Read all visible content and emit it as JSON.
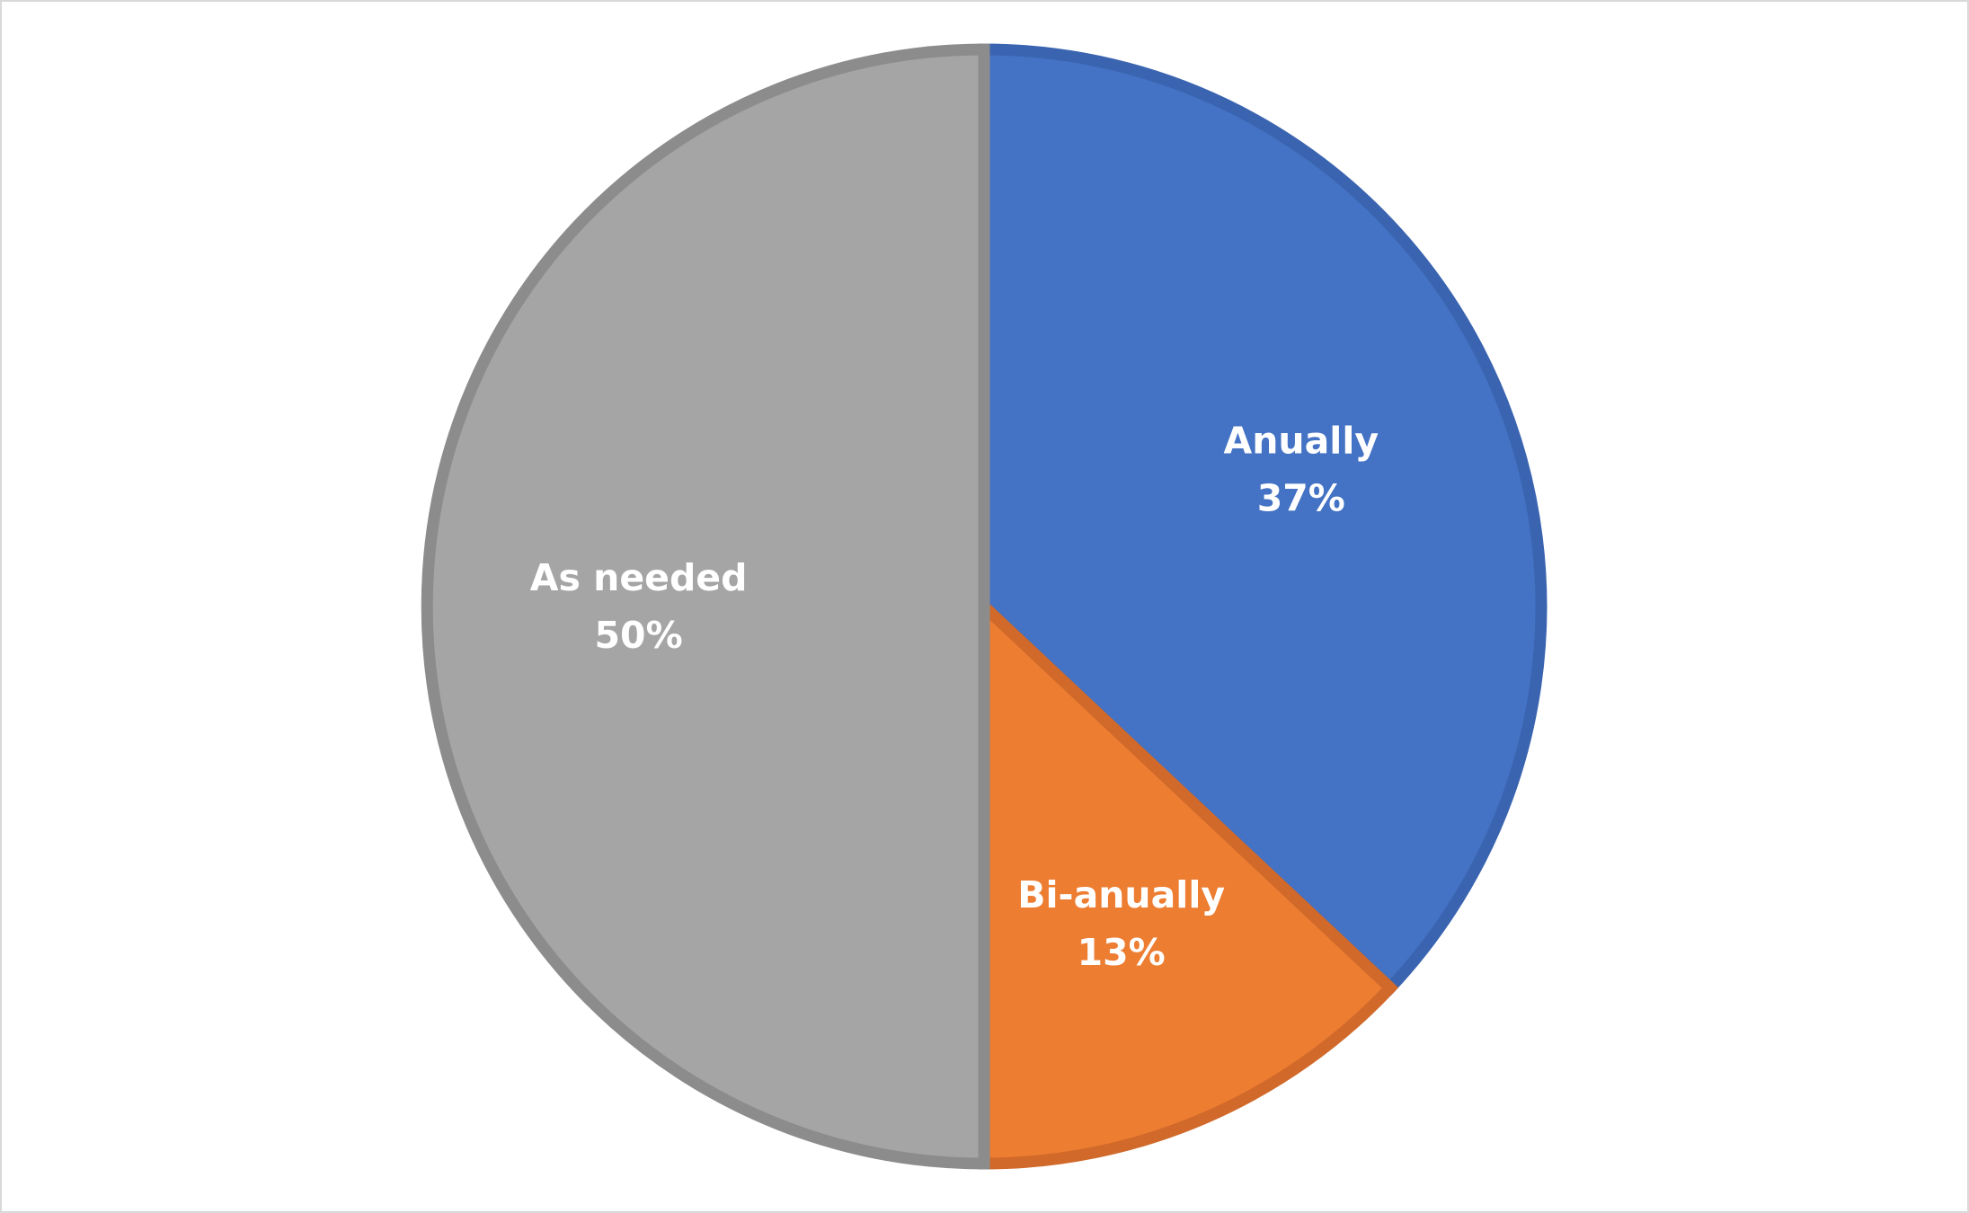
{
  "chart_data": {
    "type": "pie",
    "title": "",
    "slices": [
      {
        "label": "Anually",
        "value": 37,
        "value_label": "37%",
        "color": "#4472C4",
        "border": "#3A64B0"
      },
      {
        "label": "Bi-anually",
        "value": 13,
        "value_label": "13%",
        "color": "#ED7D31",
        "border": "#D0692A"
      },
      {
        "label": "As needed",
        "value": 50,
        "value_label": "50%",
        "color": "#A5A5A5",
        "border": "#8C8C8C"
      }
    ],
    "start_angle_deg": 0,
    "direction": "clockwise",
    "legend": "none",
    "data_labels": "inside"
  }
}
